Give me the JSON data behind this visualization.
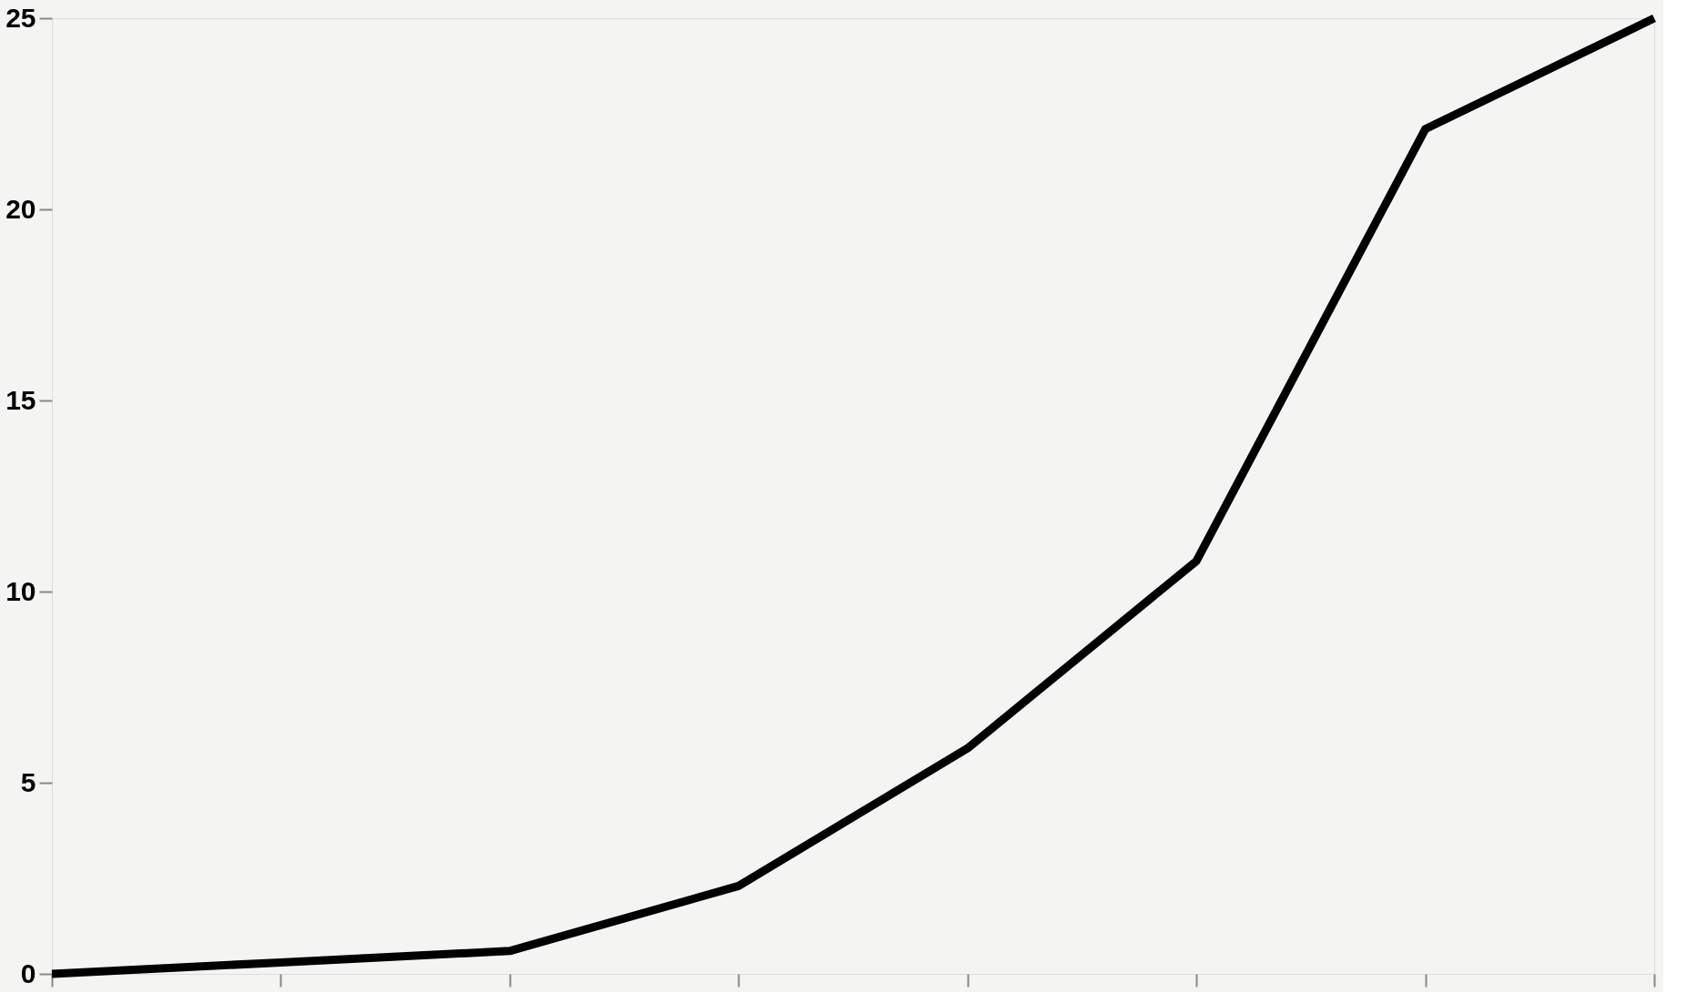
{
  "chart_data": {
    "type": "line",
    "categories": [
      null,
      null,
      null,
      null,
      null,
      null,
      null,
      null
    ],
    "series": [
      {
        "color": "#000000",
        "values": [
          0,
          0.3,
          0.6,
          2.3,
          5.9,
          10.8,
          22.1,
          25
        ]
      }
    ],
    "ylim": [
      0,
      25
    ],
    "yticks": [
      0,
      5,
      10,
      15,
      20,
      25
    ],
    "grid": false,
    "tick_labels": "y",
    "marker": "none",
    "line_style": "solid"
  }
}
